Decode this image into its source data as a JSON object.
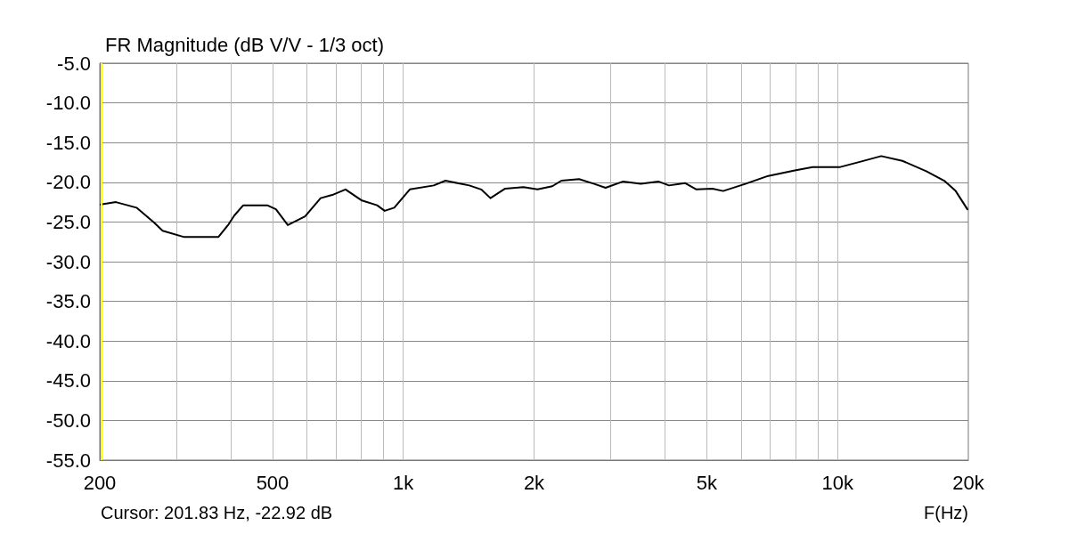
{
  "chart_data": {
    "type": "line",
    "title": "FR Magnitude (dB V/V - 1/3 oct)",
    "xlabel": "F(Hz)",
    "annotations": [
      "Cursor: 201.83 Hz, -22.92 dB"
    ],
    "log": "x",
    "grid": true,
    "marker": "none",
    "line_style": "solid",
    "xlim": [
      200,
      20000
    ],
    "xticks": [
      200,
      {
        "value": 300,
        "label": null
      },
      {
        "value": 400,
        "label": null
      },
      500,
      {
        "value": 600,
        "label": null
      },
      {
        "value": 700,
        "label": null
      },
      {
        "value": 800,
        "label": null
      },
      {
        "value": 900,
        "label": null
      },
      {
        "value": 1000,
        "label": "1k"
      },
      {
        "value": 2000,
        "label": "2k"
      },
      {
        "value": 3000,
        "label": null
      },
      {
        "value": 4000,
        "label": null
      },
      {
        "value": 5000,
        "label": "5k"
      },
      {
        "value": 6000,
        "label": null
      },
      {
        "value": 7000,
        "label": null
      },
      {
        "value": 8000,
        "label": null
      },
      {
        "value": 9000,
        "label": null
      },
      {
        "value": 10000,
        "label": "10k"
      },
      {
        "value": 20000,
        "label": "20k"
      }
    ],
    "ylim": [
      -55,
      -5
    ],
    "yticks": [
      {
        "value": -55,
        "label": "-55.0"
      },
      {
        "value": -50,
        "label": "-50.0"
      },
      {
        "value": -45,
        "label": "-45.0"
      },
      {
        "value": -40,
        "label": "-40.0"
      },
      {
        "value": -35,
        "label": "-35.0"
      },
      {
        "value": -30,
        "label": "-30.0"
      },
      {
        "value": -25,
        "label": "-25.0"
      },
      {
        "value": -20,
        "label": "-20.0"
      },
      {
        "value": -15,
        "label": "-15.0"
      },
      {
        "value": -10,
        "label": "-10.0"
      },
      {
        "value": -5,
        "label": "-5.0"
      }
    ],
    "ref_lines": [
      {
        "axis": "x",
        "value": 201.83,
        "color": "#ffff00"
      }
    ],
    "series": [
      {
        "color": "#000000",
        "x": [
          201,
          218,
          243,
          267,
          279,
          313,
          375,
          396,
          408,
          428,
          486,
          509,
          542,
          594,
          645,
          686,
          736,
          803,
          870,
          906,
          953,
          1035,
          1175,
          1250,
          1419,
          1511,
          1587,
          1716,
          1891,
          2037,
          2203,
          2312,
          2540,
          2752,
          2922,
          3208,
          3522,
          3866,
          4090,
          4450,
          4730,
          5150,
          5450,
          6130,
          6920,
          7970,
          8760,
          10100,
          11300,
          12600,
          14100,
          16000,
          17600,
          18700,
          19900
        ],
        "values": [
          -22.8,
          -22.5,
          -23.2,
          -25.1,
          -26.1,
          -26.9,
          -26.9,
          -25.3,
          -24.2,
          -22.9,
          -22.9,
          -23.4,
          -25.4,
          -24.3,
          -22.0,
          -21.6,
          -20.9,
          -22.3,
          -22.9,
          -23.6,
          -23.2,
          -20.9,
          -20.4,
          -19.8,
          -20.4,
          -20.9,
          -22.0,
          -20.8,
          -20.6,
          -20.9,
          -20.5,
          -19.8,
          -19.6,
          -20.2,
          -20.7,
          -19.9,
          -20.2,
          -19.9,
          -20.4,
          -20.1,
          -20.9,
          -20.8,
          -21.1,
          -20.2,
          -19.2,
          -18.5,
          -18.1,
          -18.1,
          -17.4,
          -16.7,
          -17.3,
          -18.6,
          -19.8,
          -21.1,
          -23.4
        ]
      }
    ]
  }
}
